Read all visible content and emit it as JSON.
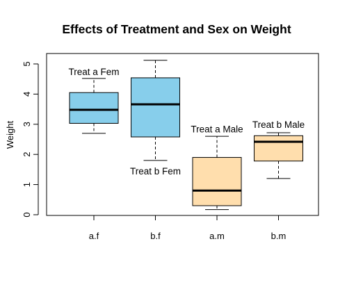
{
  "chart_data": {
    "type": "box",
    "title": "Effects of Treatment and Sex on Weight",
    "xlabel": "",
    "ylabel": "Weight",
    "ylim": [
      0,
      5.5
    ],
    "y_ticks": [
      "0",
      "1",
      "2",
      "3",
      "4",
      "5"
    ],
    "grid": false,
    "legend": "none",
    "categories": [
      "a.f",
      "b.f",
      "a.m",
      "b.m"
    ],
    "boxes": [
      {
        "category": "a.f",
        "whisker_low": 2.7,
        "q1": 3.03,
        "median": 3.48,
        "q3": 4.05,
        "whisker_high": 4.52,
        "color": "#87ceeb"
      },
      {
        "category": "b.f",
        "whisker_low": 1.8,
        "q1": 2.58,
        "median": 3.66,
        "q3": 4.54,
        "whisker_high": 5.12,
        "color": "#87ceeb"
      },
      {
        "category": "a.m",
        "whisker_low": 0.17,
        "q1": 0.3,
        "median": 0.8,
        "q3": 1.9,
        "whisker_high": 2.6,
        "color": "#ffdead"
      },
      {
        "category": "b.m",
        "whisker_low": 1.2,
        "q1": 1.78,
        "median": 2.42,
        "q3": 2.62,
        "whisker_high": 2.72,
        "color": "#ffdead"
      }
    ],
    "annotations": [
      {
        "text": "Treat a Fem",
        "x": 1,
        "y": 4.75
      },
      {
        "text": "Treat b Fem",
        "x": 2,
        "y": 1.45
      },
      {
        "text": "Treat a Male",
        "x": 3,
        "y": 2.85
      },
      {
        "text": "Treat b Male",
        "x": 4,
        "y": 3.0
      }
    ]
  }
}
